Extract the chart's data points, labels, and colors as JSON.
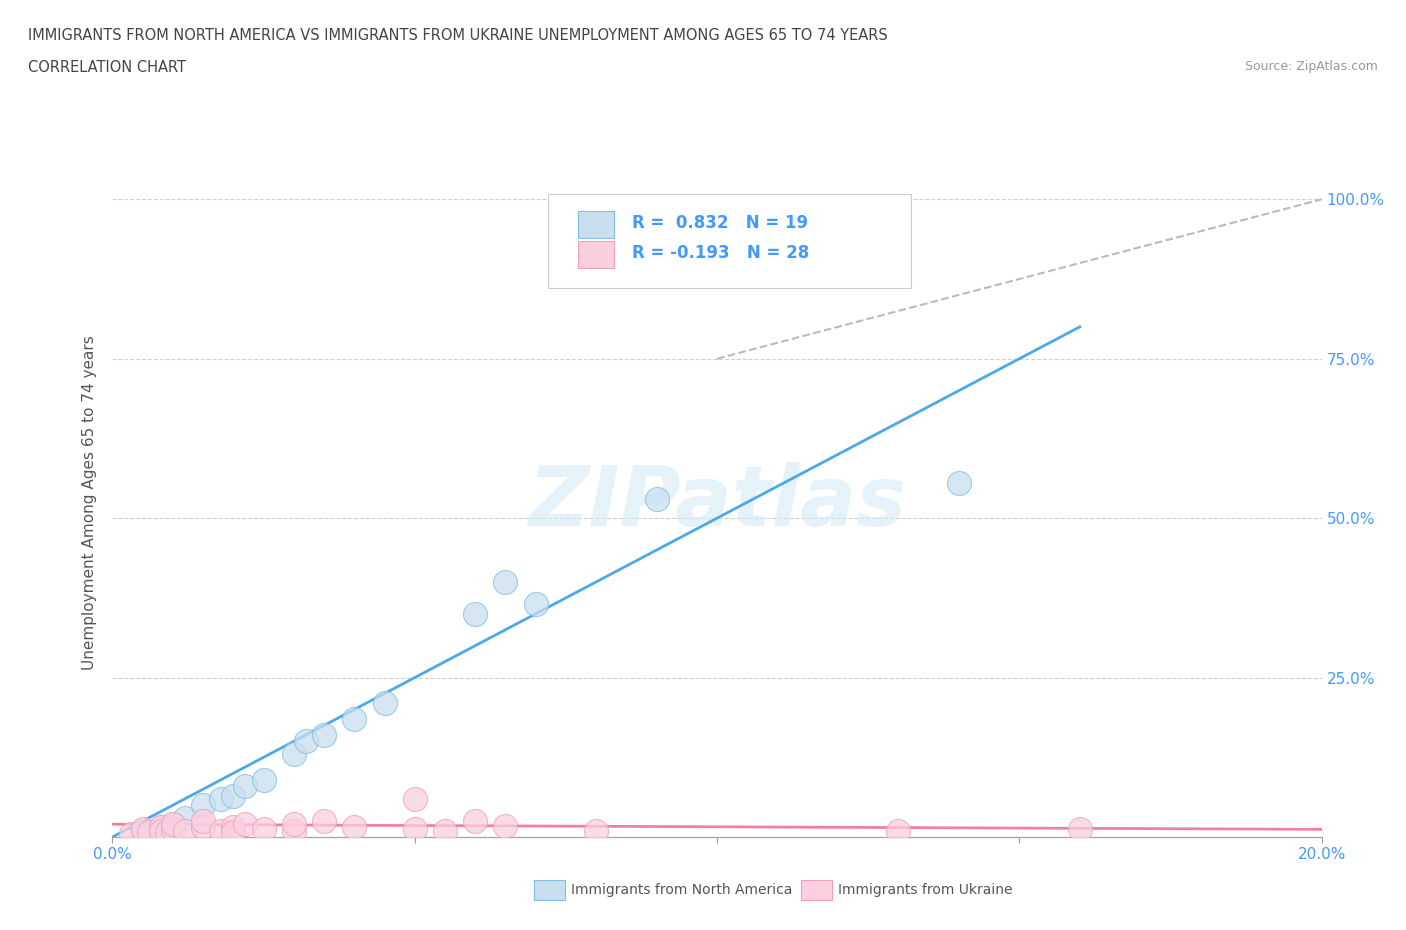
{
  "title_line1": "IMMIGRANTS FROM NORTH AMERICA VS IMMIGRANTS FROM UKRAINE UNEMPLOYMENT AMONG AGES 65 TO 74 YEARS",
  "title_line2": "CORRELATION CHART",
  "source": "Source: ZipAtlas.com",
  "ylabel": "Unemployment Among Ages 65 to 74 years",
  "xlim": [
    0.0,
    0.2
  ],
  "ylim": [
    0.0,
    1.05
  ],
  "xticks": [
    0.0,
    0.05,
    0.1,
    0.15,
    0.2
  ],
  "ytick_positions": [
    0.0,
    0.25,
    0.5,
    0.75,
    1.0
  ],
  "ytick_labels": [
    "",
    "25.0%",
    "50.0%",
    "75.0%",
    "100.0%"
  ],
  "xtick_labels": [
    "0.0%",
    "",
    "",
    "",
    "20.0%"
  ],
  "blue_scatter_x": [
    0.005,
    0.008,
    0.01,
    0.012,
    0.015,
    0.018,
    0.02,
    0.022,
    0.025,
    0.03,
    0.032,
    0.035,
    0.04,
    0.045,
    0.06,
    0.065,
    0.07,
    0.09,
    0.14
  ],
  "blue_scatter_y": [
    0.01,
    0.015,
    0.02,
    0.03,
    0.05,
    0.06,
    0.065,
    0.08,
    0.09,
    0.13,
    0.15,
    0.16,
    0.185,
    0.21,
    0.35,
    0.4,
    0.365,
    0.53,
    0.555
  ],
  "pink_scatter_x": [
    0.003,
    0.005,
    0.006,
    0.008,
    0.008,
    0.009,
    0.01,
    0.01,
    0.012,
    0.015,
    0.015,
    0.018,
    0.02,
    0.02,
    0.022,
    0.025,
    0.03,
    0.03,
    0.035,
    0.04,
    0.05,
    0.05,
    0.055,
    0.06,
    0.065,
    0.08,
    0.13,
    0.16
  ],
  "pink_scatter_y": [
    0.005,
    0.012,
    0.008,
    0.015,
    0.01,
    0.008,
    0.012,
    0.02,
    0.01,
    0.015,
    0.025,
    0.01,
    0.015,
    0.008,
    0.02,
    0.012,
    0.01,
    0.02,
    0.025,
    0.015,
    0.06,
    0.012,
    0.01,
    0.025,
    0.018,
    0.01,
    0.01,
    0.012
  ],
  "blue_line_x": [
    0.0,
    0.16
  ],
  "blue_line_y": [
    0.0,
    0.8
  ],
  "pink_line_x": [
    0.0,
    0.2
  ],
  "pink_line_y": [
    0.02,
    0.012
  ],
  "ref_line_x": [
    0.1,
    0.2
  ],
  "ref_line_y": [
    0.75,
    1.0
  ],
  "R_blue": "0.832",
  "N_blue": "19",
  "R_pink": "-0.193",
  "N_pink": "28",
  "blue_color": "#7fbfdf",
  "blue_fill": "#c9dff0",
  "pink_color": "#f0a0b8",
  "pink_fill": "#fad0e0",
  "blue_line_color": "#4da8e8",
  "pink_line_color": "#f080a0",
  "ref_line_color": "#bbbbbb",
  "watermark": "ZIPatlas",
  "legend_label_blue": "Immigrants from North America",
  "legend_label_pink": "Immigrants from Ukraine",
  "background_color": "#ffffff",
  "grid_color": "#d0d0d0",
  "title_color": "#444444",
  "tick_color": "#4499ff",
  "ylabel_color": "#555555"
}
